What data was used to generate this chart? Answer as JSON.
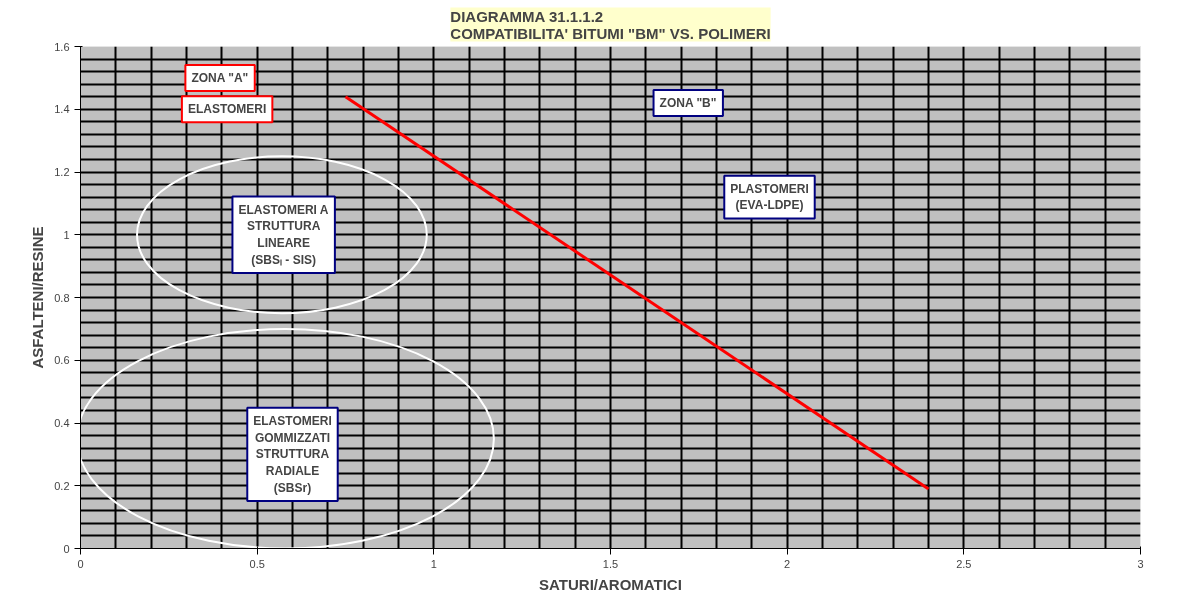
{
  "chart_data": {
    "type": "line",
    "title": "DIAGRAMMA 31.1.1.2\nCOMPATIBILITA' BITUMI \"BM\" VS. POLIMERI",
    "xlabel": "SATURI/AROMATICI",
    "ylabel": "ASFALTENI/RESINE",
    "series": [
      {
        "color": "#ff0000",
        "x": [
          0.75,
          2.4
        ],
        "values": [
          1.44,
          0.19
        ]
      }
    ],
    "xlim": [
      0,
      3
    ],
    "ylim": [
      0,
      1.6
    ],
    "xticks": [
      0,
      0.5,
      1,
      1.5,
      2,
      2.5,
      3
    ],
    "yticks": [
      0,
      0.2,
      0.4,
      0.6,
      0.8,
      1,
      1.2,
      1.4,
      1.6
    ],
    "grid": true,
    "marker": "none",
    "line_style": "solid",
    "annotations": [
      "ZONA \"A\"",
      "ELASTOMERI",
      "ELASTOMERI A\nSTRUTTURA\nLINEARE\n(SBSₗ - SIS)",
      "ELASTOMERI\nGOMMIZZATI\nSTRUTTURA\nRADIALE\n(SBSr)",
      "ZONA \"B\"",
      "PLASTOMERI\n(EVA-LDPE)"
    ]
  }
}
